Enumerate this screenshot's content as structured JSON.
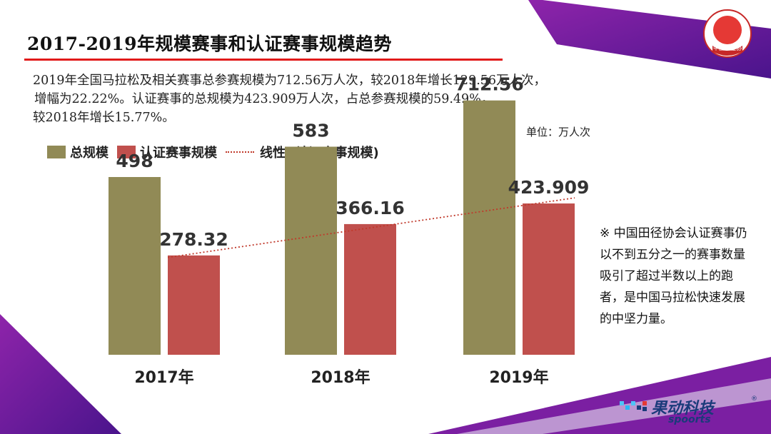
{
  "title": "2017-2019年规模赛事和认证赛事规模趋势",
  "summary_lines": [
    "2019年全国马拉松及相关赛事总参赛规模为712.56万人次，较2018年增长129.56万人次，",
    "增幅为22.22%。认证赛事的总规模为423.909万人次，占总参赛规模的59.49%，",
    "较2018年增长15.77%。"
  ],
  "unit": "单位：万人次",
  "legend": {
    "total": "总规模",
    "certified": "认证赛事规模",
    "trend": "线性 (认证赛事规模)"
  },
  "note": "※ 中国田径协会认证赛事仍以不到五分之一的赛事数量吸引了超过半数以上的跑者，是中国马拉松快速发展的中坚力量。",
  "badge_text": "中国田径协",
  "brand": {
    "cn": "果动科技",
    "en": "spoorts",
    "reg": "®"
  },
  "colors": {
    "total": "#918a56",
    "certified": "#c0504d",
    "trend": "#c0392b",
    "purple": "#6a1b9a"
  },
  "chart_data": {
    "type": "bar",
    "categories": [
      "2017年",
      "2018年",
      "2019年"
    ],
    "series": [
      {
        "name": "总规模",
        "values": [
          498,
          583,
          712.56
        ],
        "labels": [
          "498",
          "583",
          "712.56"
        ]
      },
      {
        "name": "认证赛事规模",
        "values": [
          278.32,
          366.16,
          423.909
        ],
        "labels": [
          "278.32",
          "366.16",
          "423.909"
        ]
      }
    ],
    "trendline": {
      "name": "线性 (认证赛事规模)",
      "of_series": "认证赛事规模"
    },
    "ylim": [
      0,
      800
    ],
    "grid": false,
    "legend_position": "top-left"
  }
}
